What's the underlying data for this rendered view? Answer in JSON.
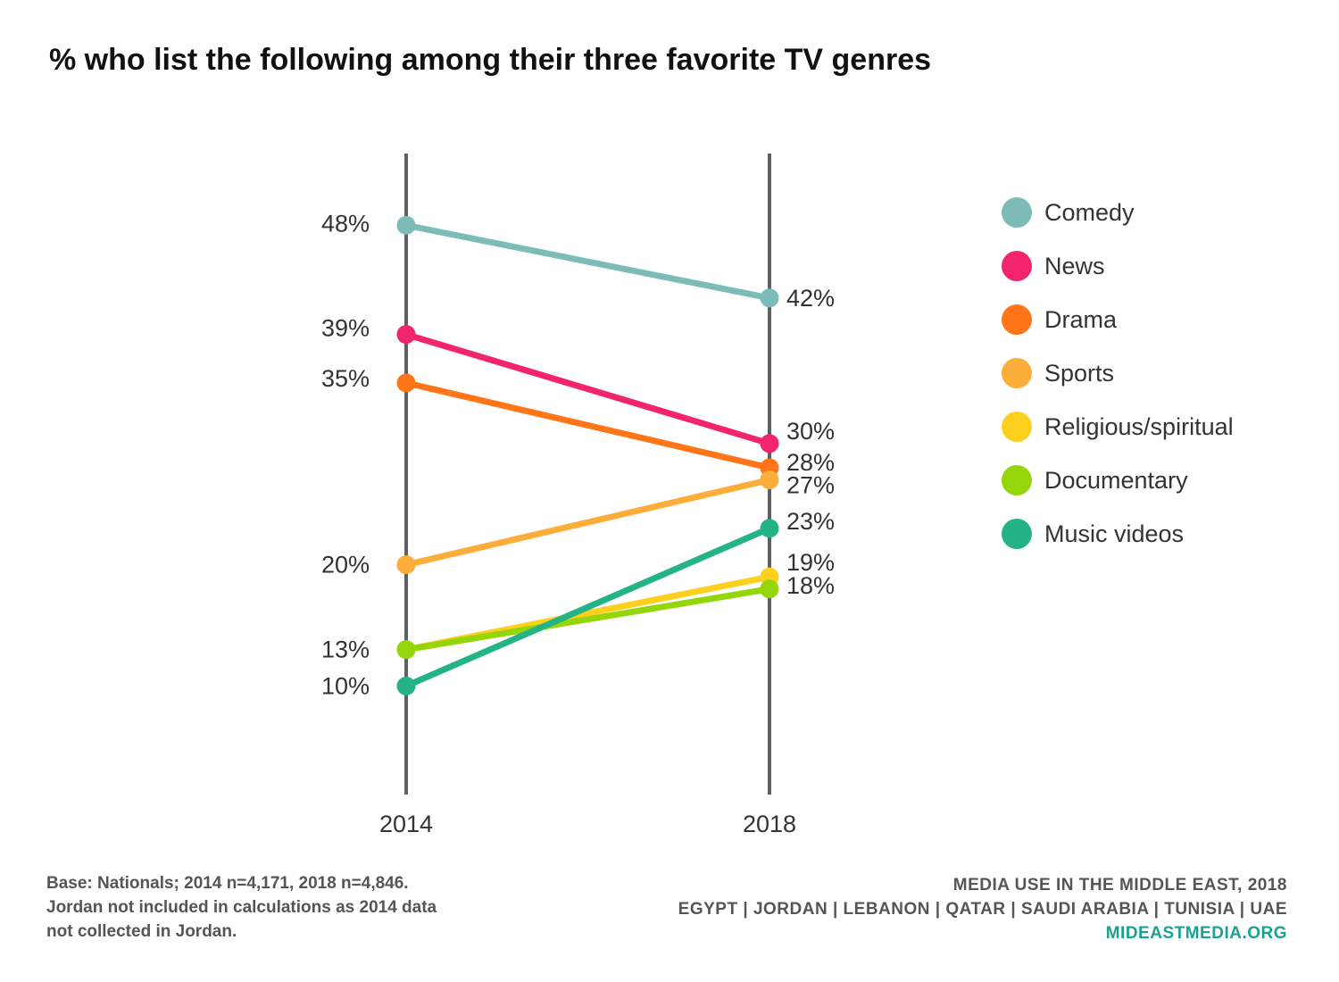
{
  "title": "% who list the following among their three favorite TV genres",
  "chart_data": {
    "type": "line",
    "title": "% who list the following among their three favorite TV genres",
    "categories": [
      "2014",
      "2018"
    ],
    "legend_position": "right",
    "series": [
      {
        "name": "Comedy",
        "values": [
          48,
          42
        ],
        "labels": [
          "48%",
          "42%"
        ],
        "color": "#7dbbb9"
      },
      {
        "name": "News",
        "values": [
          39,
          30
        ],
        "labels": [
          "39%",
          "30%"
        ],
        "color": "#f2246e"
      },
      {
        "name": "Drama",
        "values": [
          35,
          28
        ],
        "labels": [
          "35%",
          "28%"
        ],
        "color": "#ff7518"
      },
      {
        "name": "Sports",
        "values": [
          20,
          27
        ],
        "labels": [
          "20%",
          "27%"
        ],
        "color": "#fdad3a"
      },
      {
        "name": "Religious/spiritual",
        "values": [
          13,
          19
        ],
        "labels": [
          "",
          "19%"
        ],
        "color": "#fdd020"
      },
      {
        "name": "Documentary",
        "values": [
          13,
          18
        ],
        "labels": [
          "13%",
          "18%"
        ],
        "color": "#94d60a"
      },
      {
        "name": "Music videos",
        "values": [
          10,
          23
        ],
        "labels": [
          "10%",
          "23%"
        ],
        "color": "#24b387"
      }
    ],
    "ylim": [
      -5,
      55
    ],
    "grid": false
  },
  "footer": {
    "base_note": [
      "Base: Nationals; 2014 n=4,171, 2018 n=4,846.",
      "Jordan not included in calculations as 2014 data",
      "not collected in Jordan."
    ],
    "report_title": "MEDIA USE IN THE MIDDLE EAST, 2018",
    "countries": "EGYPT | JORDAN | LEBANON | QATAR | SAUDI ARABIA | TUNISIA | UAE",
    "site": "MIDEASTMEDIA.ORG"
  },
  "colors": {
    "axis": "#5d6163",
    "site_link": "#1aa28f"
  }
}
